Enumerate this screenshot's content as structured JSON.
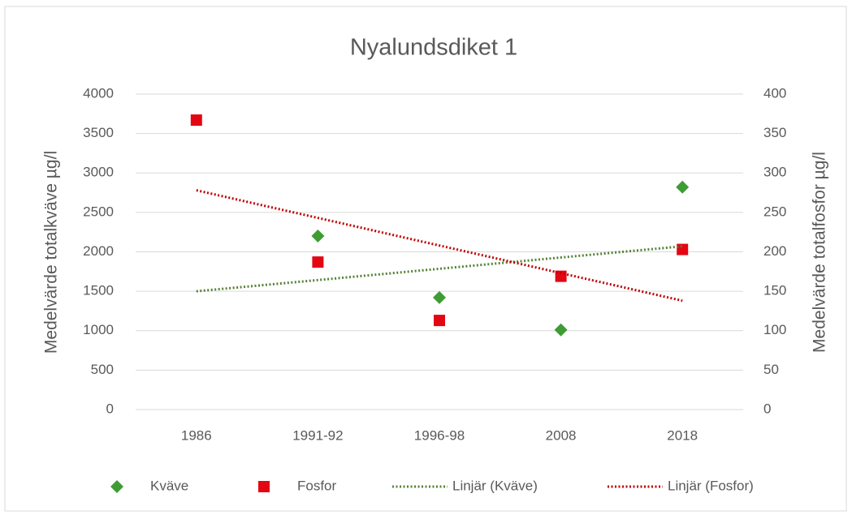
{
  "chart_data": {
    "type": "combo",
    "title": "Nyalundsdiket 1",
    "y_label": "Medelvärde totalkväve µg/l",
    "y2_label": "Medelvärde totalfosfor µg/l",
    "categories": [
      "1986",
      "1991-92",
      "1996-98",
      "2008",
      "2018"
    ],
    "ylim": [
      0,
      4000
    ],
    "yticks": [
      0,
      500,
      1000,
      1500,
      2000,
      2500,
      3000,
      3500,
      4000
    ],
    "y2lim": [
      0,
      400
    ],
    "y2ticks": [
      0,
      50,
      100,
      150,
      200,
      250,
      300,
      350,
      400
    ],
    "grid": true,
    "legend": "bottom",
    "series": [
      {
        "name": "Kväve",
        "type": "scatter",
        "marker": "diamond",
        "color": "#3f9c35",
        "values": [
          null,
          2200,
          1420,
          1010,
          2820
        ]
      },
      {
        "name": "Fosfor",
        "type": "scatter",
        "marker": "square",
        "color": "#e30613",
        "axis": "y2",
        "values": [
          367,
          187,
          113,
          169,
          203
        ]
      },
      {
        "name": "Linjär (Kväve)",
        "type": "line",
        "color": "#548235",
        "values": [
          1500,
          1642,
          1785,
          1928,
          2070
        ]
      },
      {
        "name": "Linjär (Fosfor)",
        "type": "line",
        "color": "#c00000",
        "axis": "y2",
        "values": [
          278,
          243,
          208,
          173,
          138
        ]
      }
    ]
  }
}
